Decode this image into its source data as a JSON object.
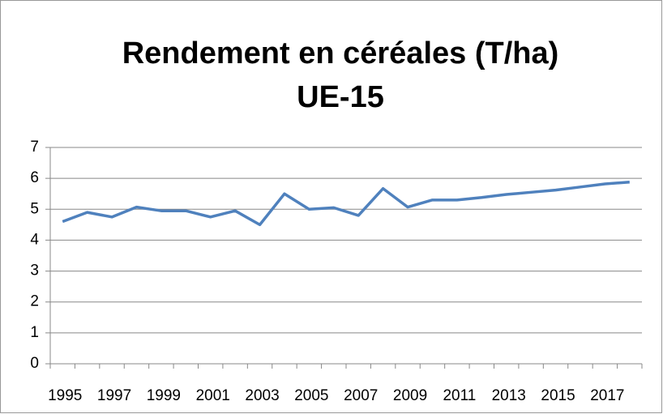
{
  "chart_data": {
    "type": "line",
    "title": "Rendement en céréales (T/ha)",
    "subtitle": "UE-15",
    "categories": [
      "1995",
      null,
      "1997",
      null,
      "1999",
      null,
      "2001",
      null,
      "2003",
      null,
      "2005",
      null,
      "2007",
      null,
      "2009",
      null,
      "2011",
      null,
      "2013",
      null,
      "2015",
      null,
      "2017",
      null
    ],
    "series": [
      {
        "name": "Rendement",
        "color": "#4f81bd",
        "values": [
          4.6,
          4.9,
          4.75,
          5.07,
          4.95,
          4.95,
          4.75,
          4.95,
          4.5,
          5.5,
          5.0,
          5.05,
          4.8,
          5.67,
          5.07,
          5.3,
          5.3,
          5.38,
          5.48,
          5.55,
          5.62,
          5.72,
          5.82,
          5.88
        ]
      }
    ],
    "ylim": [
      0,
      7
    ],
    "yticks": [
      0,
      1,
      2,
      3,
      4,
      5,
      6,
      7
    ],
    "grid": true
  }
}
